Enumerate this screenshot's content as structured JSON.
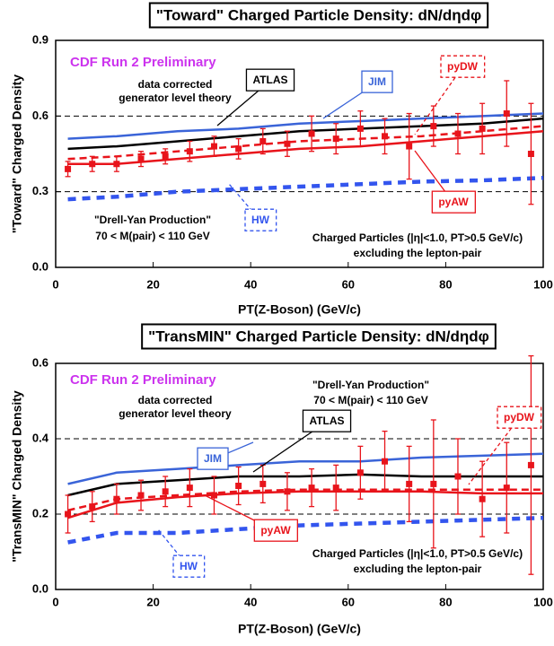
{
  "chart_data": [
    {
      "type": "line",
      "title": "\"Toward\" Charged Particle Density: dN/dηdφ",
      "y_label": "\"Toward\" Charged Density",
      "x_label": "PT(Z-Boson)  (GeV/c)",
      "annotations": [
        "CDF Run 2 Preliminary",
        "data corrected",
        "generator level theory",
        "\"Drell-Yan Production\"",
        "70 < M(pair) < 110 GeV",
        "Charged Particles (|η|<1.0, PT>0.5 GeV/c)",
        "excluding the lepton-pair"
      ],
      "xlim": [
        0,
        100
      ],
      "xticks": [
        0,
        20,
        40,
        60,
        80,
        100
      ],
      "ylim": [
        0,
        0.9
      ],
      "yticks": [
        {
          "value": 0,
          "label": "0.0"
        },
        0.3,
        0.6,
        0.9
      ],
      "grid": true,
      "data_points": {
        "color": "#e8141b",
        "x": [
          2.5,
          7.5,
          12.5,
          17.5,
          22.5,
          27.5,
          32.5,
          37.5,
          42.5,
          47.5,
          52.5,
          57.5,
          62.5,
          67.5,
          72.5,
          77.5,
          82.5,
          87.5,
          92.5,
          97.5
        ],
        "values": [
          0.39,
          0.41,
          0.41,
          0.43,
          0.44,
          0.46,
          0.48,
          0.47,
          0.5,
          0.49,
          0.53,
          0.51,
          0.55,
          0.52,
          0.48,
          0.56,
          0.53,
          0.55,
          0.61,
          0.45
        ],
        "errors": [
          0.03,
          0.03,
          0.03,
          0.03,
          0.03,
          0.04,
          0.04,
          0.04,
          0.05,
          0.05,
          0.07,
          0.06,
          0.07,
          0.07,
          0.13,
          0.08,
          0.08,
          0.1,
          0.13,
          0.2
        ]
      },
      "series": [
        {
          "name": "JIM",
          "color": "#3a64d8",
          "dashed": false,
          "x": [
            2.5,
            12.5,
            25,
            37.5,
            50,
            62.5,
            75,
            87.5,
            100
          ],
          "values": [
            0.51,
            0.52,
            0.54,
            0.55,
            0.57,
            0.58,
            0.59,
            0.6,
            0.61
          ]
        },
        {
          "name": "ATLAS",
          "color": "#000000",
          "dashed": false,
          "x": [
            2.5,
            12.5,
            25,
            37.5,
            50,
            62.5,
            75,
            87.5,
            100
          ],
          "values": [
            0.47,
            0.48,
            0.5,
            0.52,
            0.54,
            0.55,
            0.56,
            0.57,
            0.59
          ]
        },
        {
          "name": "pyDW",
          "color": "#e8141b",
          "dashed": true,
          "x": [
            2.5,
            12.5,
            25,
            37.5,
            50,
            62.5,
            75,
            87.5,
            100
          ],
          "values": [
            0.43,
            0.44,
            0.46,
            0.48,
            0.5,
            0.51,
            0.52,
            0.54,
            0.56
          ]
        },
        {
          "name": "pyAW",
          "color": "#e8141b",
          "dashed": false,
          "x": [
            2.5,
            12.5,
            25,
            37.5,
            50,
            62.5,
            75,
            87.5,
            100
          ],
          "values": [
            0.41,
            0.41,
            0.43,
            0.45,
            0.47,
            0.48,
            0.5,
            0.52,
            0.54
          ]
        },
        {
          "name": "HW",
          "color": "#3355ee",
          "dashed": true,
          "x": [
            2.5,
            12.5,
            25,
            37.5,
            50,
            62.5,
            75,
            87.5,
            100
          ],
          "values": [
            0.27,
            0.28,
            0.3,
            0.31,
            0.32,
            0.33,
            0.34,
            0.345,
            0.355
          ]
        }
      ]
    },
    {
      "type": "line",
      "title": "\"TransMIN\" Charged Particle Density: dN/dηdφ",
      "y_label": "\"TransMIN\" Charged Density",
      "x_label": "PT(Z-Boson)  (GeV/c)",
      "annotations": [
        "CDF Run 2 Preliminary",
        "data corrected",
        "generator level theory",
        "\"Drell-Yan Production\"",
        "70 < M(pair) < 110 GeV",
        "Charged Particles (|η|<1.0, PT>0.5 GeV/c)",
        "excluding the lepton-pair"
      ],
      "xlim": [
        0,
        100
      ],
      "xticks": [
        0,
        20,
        40,
        60,
        80,
        100
      ],
      "ylim": [
        0,
        0.6
      ],
      "yticks": [
        {
          "value": 0,
          "label": "0.0"
        },
        0.2,
        0.4,
        0.6
      ],
      "grid": true,
      "data_points": {
        "color": "#e8141b",
        "x": [
          2.5,
          7.5,
          12.5,
          17.5,
          22.5,
          27.5,
          32.5,
          37.5,
          42.5,
          47.5,
          52.5,
          57.5,
          62.5,
          67.5,
          72.5,
          77.5,
          82.5,
          87.5,
          92.5,
          97.5
        ],
        "values": [
          0.2,
          0.22,
          0.24,
          0.25,
          0.26,
          0.27,
          0.25,
          0.275,
          0.28,
          0.26,
          0.27,
          0.27,
          0.31,
          0.34,
          0.28,
          0.28,
          0.3,
          0.24,
          0.27,
          0.33
        ],
        "errors": [
          0.05,
          0.04,
          0.04,
          0.04,
          0.04,
          0.05,
          0.05,
          0.05,
          0.05,
          0.05,
          0.05,
          0.06,
          0.07,
          0.08,
          0.1,
          0.17,
          0.1,
          0.1,
          0.12,
          0.29
        ]
      },
      "series": [
        {
          "name": "JIM",
          "color": "#3a64d8",
          "dashed": false,
          "x": [
            2.5,
            12.5,
            25,
            37.5,
            50,
            62.5,
            75,
            87.5,
            100
          ],
          "values": [
            0.28,
            0.31,
            0.32,
            0.33,
            0.34,
            0.34,
            0.35,
            0.355,
            0.36
          ]
        },
        {
          "name": "ATLAS",
          "color": "#000000",
          "dashed": false,
          "x": [
            2.5,
            12.5,
            25,
            37.5,
            50,
            62.5,
            75,
            87.5,
            100
          ],
          "values": [
            0.25,
            0.28,
            0.29,
            0.3,
            0.3,
            0.305,
            0.3,
            0.3,
            0.3
          ]
        },
        {
          "name": "pyDW",
          "color": "#e8141b",
          "dashed": true,
          "x": [
            2.5,
            12.5,
            25,
            37.5,
            50,
            62.5,
            75,
            87.5,
            100
          ],
          "values": [
            0.21,
            0.24,
            0.25,
            0.26,
            0.265,
            0.265,
            0.265,
            0.265,
            0.265
          ]
        },
        {
          "name": "pyAW",
          "color": "#e8141b",
          "dashed": false,
          "x": [
            2.5,
            12.5,
            25,
            37.5,
            50,
            62.5,
            75,
            87.5,
            100
          ],
          "values": [
            0.19,
            0.23,
            0.245,
            0.255,
            0.26,
            0.26,
            0.26,
            0.255,
            0.255
          ]
        },
        {
          "name": "HW",
          "color": "#3355ee",
          "dashed": true,
          "x": [
            2.5,
            12.5,
            25,
            37.5,
            50,
            62.5,
            75,
            87.5,
            100
          ],
          "values": [
            0.125,
            0.15,
            0.15,
            0.16,
            0.17,
            0.175,
            0.18,
            0.185,
            0.19
          ]
        }
      ]
    }
  ]
}
